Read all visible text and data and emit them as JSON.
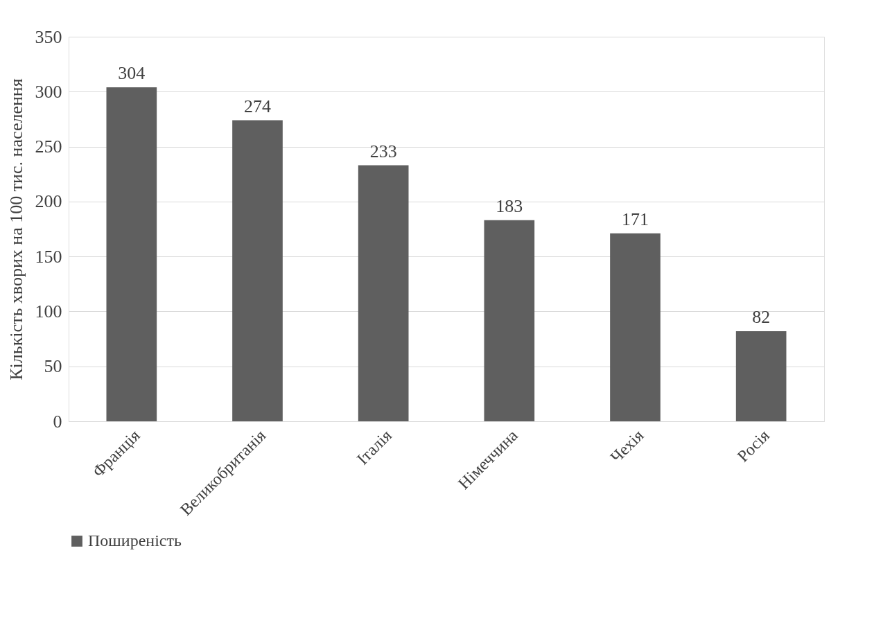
{
  "chart_data": {
    "type": "bar",
    "ylabel": "Кількість хворих на 100 тис. населення",
    "categories": [
      "Франція",
      "Великобританія",
      "Італія",
      "Німеччина",
      "Чехія",
      "Росія"
    ],
    "series": [
      {
        "name": "Поширеність",
        "color": "#5f5f5f",
        "values": [
          304,
          274,
          233,
          183,
          171,
          82
        ]
      }
    ],
    "ylim": [
      0,
      350
    ],
    "yticks": [
      0,
      50,
      100,
      150,
      200,
      250,
      300,
      350
    ],
    "grid": "y",
    "legend": "bottom",
    "data_labels": true
  }
}
